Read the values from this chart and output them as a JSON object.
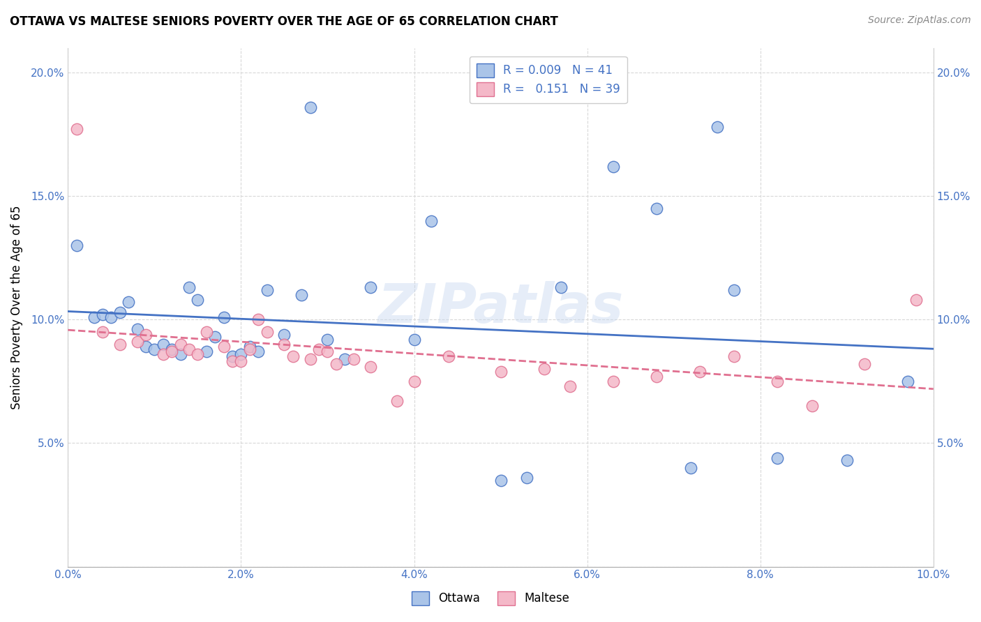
{
  "title": "OTTAWA VS MALTESE SENIORS POVERTY OVER THE AGE OF 65 CORRELATION CHART",
  "source": "Source: ZipAtlas.com",
  "ylabel": "Seniors Poverty Over the Age of 65",
  "xlim": [
    0.0,
    0.1
  ],
  "ylim": [
    0.0,
    0.21
  ],
  "x_ticks": [
    0.0,
    0.02,
    0.04,
    0.06,
    0.08,
    0.1
  ],
  "x_tick_labels": [
    "0.0%",
    "2.0%",
    "4.0%",
    "6.0%",
    "8.0%",
    "10.0%"
  ],
  "y_ticks": [
    0.0,
    0.05,
    0.1,
    0.15,
    0.2
  ],
  "y_tick_labels": [
    "",
    "5.0%",
    "10.0%",
    "15.0%",
    "20.0%"
  ],
  "background_color": "#ffffff",
  "grid_color": "#d8d8d8",
  "ottawa_color": "#aac4e8",
  "maltese_color": "#f4b8c8",
  "ottawa_line_color": "#4472c4",
  "maltese_line_color": "#e07090",
  "watermark": "ZIPatlas",
  "legend_R_ottawa": "0.009",
  "legend_N_ottawa": "41",
  "legend_R_maltese": "0.151",
  "legend_N_maltese": "39",
  "ottawa_x": [
    0.001,
    0.003,
    0.004,
    0.005,
    0.006,
    0.007,
    0.008,
    0.009,
    0.01,
    0.011,
    0.012,
    0.013,
    0.014,
    0.015,
    0.016,
    0.017,
    0.018,
    0.019,
    0.02,
    0.021,
    0.022,
    0.023,
    0.025,
    0.027,
    0.028,
    0.03,
    0.032,
    0.035,
    0.04,
    0.042,
    0.05,
    0.053,
    0.057,
    0.063,
    0.068,
    0.072,
    0.075,
    0.077,
    0.082,
    0.09,
    0.097
  ],
  "ottawa_y": [
    0.13,
    0.101,
    0.102,
    0.101,
    0.103,
    0.107,
    0.096,
    0.089,
    0.088,
    0.09,
    0.088,
    0.086,
    0.113,
    0.108,
    0.087,
    0.093,
    0.101,
    0.085,
    0.086,
    0.089,
    0.087,
    0.112,
    0.094,
    0.11,
    0.186,
    0.092,
    0.084,
    0.113,
    0.092,
    0.14,
    0.035,
    0.036,
    0.113,
    0.162,
    0.145,
    0.04,
    0.178,
    0.112,
    0.044,
    0.043,
    0.075
  ],
  "maltese_x": [
    0.001,
    0.004,
    0.006,
    0.008,
    0.009,
    0.011,
    0.012,
    0.013,
    0.014,
    0.015,
    0.016,
    0.018,
    0.019,
    0.02,
    0.021,
    0.022,
    0.023,
    0.025,
    0.026,
    0.028,
    0.029,
    0.03,
    0.031,
    0.033,
    0.035,
    0.038,
    0.04,
    0.044,
    0.05,
    0.055,
    0.058,
    0.063,
    0.068,
    0.073,
    0.077,
    0.082,
    0.086,
    0.092,
    0.098
  ],
  "maltese_y": [
    0.177,
    0.095,
    0.09,
    0.091,
    0.094,
    0.086,
    0.087,
    0.09,
    0.088,
    0.086,
    0.095,
    0.089,
    0.083,
    0.083,
    0.088,
    0.1,
    0.095,
    0.09,
    0.085,
    0.084,
    0.088,
    0.087,
    0.082,
    0.084,
    0.081,
    0.067,
    0.075,
    0.085,
    0.079,
    0.08,
    0.073,
    0.075,
    0.077,
    0.079,
    0.085,
    0.075,
    0.065,
    0.082,
    0.108
  ]
}
